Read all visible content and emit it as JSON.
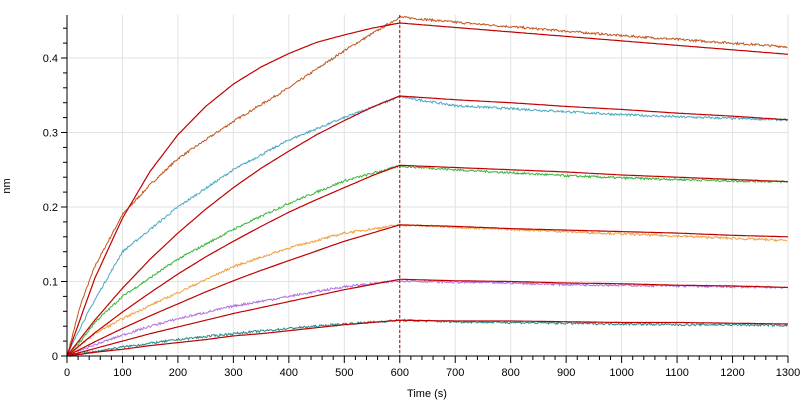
{
  "chart_data": {
    "type": "line",
    "xlabel": "Time (s)",
    "ylabel": "nm",
    "xlim": [
      0,
      1300
    ],
    "ylim": [
      0,
      0.458
    ],
    "x_ticks": [
      0,
      100,
      200,
      300,
      400,
      500,
      600,
      700,
      800,
      900,
      1000,
      1100,
      1200,
      1300
    ],
    "y_ticks": [
      0,
      0.1,
      0.2,
      0.3,
      0.4
    ],
    "y_tick_labels": [
      "0",
      "0.1",
      "0.2",
      "0.3",
      "0.4"
    ],
    "grid": true,
    "marker_line": {
      "x": 600,
      "style": "dashed",
      "color": "#b00000"
    },
    "fit_color": "#c00000",
    "measured": [
      {
        "color": "#c0561e",
        "points": [
          [
            0,
            0
          ],
          [
            25,
            0.07
          ],
          [
            50,
            0.12
          ],
          [
            100,
            0.19
          ],
          [
            150,
            0.23
          ],
          [
            200,
            0.265
          ],
          [
            300,
            0.315
          ],
          [
            400,
            0.36
          ],
          [
            500,
            0.41
          ],
          [
            600,
            0.455
          ],
          [
            700,
            0.448
          ],
          [
            800,
            0.442
          ],
          [
            900,
            0.436
          ],
          [
            1000,
            0.43
          ],
          [
            1100,
            0.425
          ],
          [
            1200,
            0.42
          ],
          [
            1300,
            0.415
          ]
        ]
      },
      {
        "color": "#4aa8c4",
        "points": [
          [
            0,
            0
          ],
          [
            25,
            0.04
          ],
          [
            50,
            0.075
          ],
          [
            100,
            0.14
          ],
          [
            150,
            0.17
          ],
          [
            200,
            0.2
          ],
          [
            300,
            0.25
          ],
          [
            400,
            0.29
          ],
          [
            500,
            0.32
          ],
          [
            600,
            0.348
          ],
          [
            700,
            0.336
          ],
          [
            800,
            0.332
          ],
          [
            900,
            0.328
          ],
          [
            1000,
            0.324
          ],
          [
            1100,
            0.321
          ],
          [
            1200,
            0.319
          ],
          [
            1300,
            0.317
          ]
        ]
      },
      {
        "color": "#3cb43c",
        "points": [
          [
            0,
            0
          ],
          [
            25,
            0.02
          ],
          [
            50,
            0.045
          ],
          [
            100,
            0.08
          ],
          [
            150,
            0.105
          ],
          [
            200,
            0.13
          ],
          [
            300,
            0.17
          ],
          [
            400,
            0.205
          ],
          [
            500,
            0.235
          ],
          [
            600,
            0.255
          ],
          [
            700,
            0.25
          ],
          [
            800,
            0.246
          ],
          [
            900,
            0.242
          ],
          [
            1000,
            0.239
          ],
          [
            1100,
            0.237
          ],
          [
            1200,
            0.235
          ],
          [
            1300,
            0.234
          ]
        ]
      },
      {
        "color": "#f0a040",
        "points": [
          [
            0,
            0
          ],
          [
            25,
            0.015
          ],
          [
            50,
            0.03
          ],
          [
            100,
            0.05
          ],
          [
            150,
            0.068
          ],
          [
            200,
            0.085
          ],
          [
            300,
            0.12
          ],
          [
            400,
            0.145
          ],
          [
            500,
            0.165
          ],
          [
            600,
            0.176
          ],
          [
            700,
            0.173
          ],
          [
            800,
            0.17
          ],
          [
            900,
            0.167
          ],
          [
            1000,
            0.164
          ],
          [
            1100,
            0.161
          ],
          [
            1200,
            0.158
          ],
          [
            1300,
            0.155
          ]
        ]
      },
      {
        "color": "#b070e0",
        "points": [
          [
            0,
            0
          ],
          [
            25,
            0.008
          ],
          [
            50,
            0.015
          ],
          [
            100,
            0.028
          ],
          [
            150,
            0.04
          ],
          [
            200,
            0.05
          ],
          [
            300,
            0.067
          ],
          [
            400,
            0.08
          ],
          [
            500,
            0.093
          ],
          [
            600,
            0.101
          ],
          [
            700,
            0.099
          ],
          [
            800,
            0.098
          ],
          [
            900,
            0.096
          ],
          [
            1000,
            0.095
          ],
          [
            1100,
            0.094
          ],
          [
            1200,
            0.093
          ],
          [
            1300,
            0.092
          ]
        ]
      },
      {
        "color": "#2a8a8a",
        "points": [
          [
            0,
            0
          ],
          [
            25,
            0.003
          ],
          [
            50,
            0.006
          ],
          [
            100,
            0.012
          ],
          [
            150,
            0.017
          ],
          [
            200,
            0.022
          ],
          [
            300,
            0.03
          ],
          [
            400,
            0.037
          ],
          [
            500,
            0.043
          ],
          [
            600,
            0.048
          ],
          [
            700,
            0.046
          ],
          [
            800,
            0.045
          ],
          [
            900,
            0.044
          ],
          [
            1000,
            0.043
          ],
          [
            1100,
            0.042
          ],
          [
            1200,
            0.042
          ],
          [
            1300,
            0.041
          ]
        ]
      }
    ],
    "fits": [
      {
        "points": [
          [
            0,
            0
          ],
          [
            50,
            0.104
          ],
          [
            100,
            0.185
          ],
          [
            150,
            0.248
          ],
          [
            200,
            0.297
          ],
          [
            250,
            0.335
          ],
          [
            300,
            0.365
          ],
          [
            350,
            0.388
          ],
          [
            400,
            0.406
          ],
          [
            450,
            0.421
          ],
          [
            500,
            0.431
          ],
          [
            550,
            0.44
          ],
          [
            600,
            0.447
          ],
          [
            700,
            0.441
          ],
          [
            800,
            0.435
          ],
          [
            900,
            0.429
          ],
          [
            1000,
            0.423
          ],
          [
            1100,
            0.417
          ],
          [
            1200,
            0.411
          ],
          [
            1300,
            0.405
          ]
        ]
      },
      {
        "points": [
          [
            0,
            0
          ],
          [
            50,
            0.048
          ],
          [
            100,
            0.091
          ],
          [
            150,
            0.13
          ],
          [
            200,
            0.165
          ],
          [
            250,
            0.197
          ],
          [
            300,
            0.226
          ],
          [
            350,
            0.252
          ],
          [
            400,
            0.275
          ],
          [
            450,
            0.297
          ],
          [
            500,
            0.316
          ],
          [
            550,
            0.334
          ],
          [
            600,
            0.349
          ],
          [
            700,
            0.344
          ],
          [
            800,
            0.34
          ],
          [
            900,
            0.335
          ],
          [
            1000,
            0.331
          ],
          [
            1100,
            0.326
          ],
          [
            1200,
            0.322
          ],
          [
            1300,
            0.317
          ]
        ]
      },
      {
        "points": [
          [
            0,
            0
          ],
          [
            50,
            0.031
          ],
          [
            100,
            0.059
          ],
          [
            150,
            0.085
          ],
          [
            200,
            0.11
          ],
          [
            250,
            0.133
          ],
          [
            300,
            0.154
          ],
          [
            350,
            0.174
          ],
          [
            400,
            0.193
          ],
          [
            450,
            0.21
          ],
          [
            500,
            0.226
          ],
          [
            550,
            0.242
          ],
          [
            600,
            0.256
          ],
          [
            700,
            0.253
          ],
          [
            800,
            0.25
          ],
          [
            900,
            0.247
          ],
          [
            1000,
            0.243
          ],
          [
            1100,
            0.24
          ],
          [
            1200,
            0.237
          ],
          [
            1300,
            0.234
          ]
        ]
      },
      {
        "points": [
          [
            0,
            0
          ],
          [
            50,
            0.019
          ],
          [
            100,
            0.037
          ],
          [
            150,
            0.054
          ],
          [
            200,
            0.07
          ],
          [
            250,
            0.086
          ],
          [
            300,
            0.101
          ],
          [
            350,
            0.115
          ],
          [
            400,
            0.128
          ],
          [
            450,
            0.141
          ],
          [
            500,
            0.154
          ],
          [
            550,
            0.165
          ],
          [
            600,
            0.176
          ],
          [
            700,
            0.174
          ],
          [
            800,
            0.171
          ],
          [
            900,
            0.169
          ],
          [
            1000,
            0.167
          ],
          [
            1100,
            0.165
          ],
          [
            1200,
            0.162
          ],
          [
            1300,
            0.16
          ]
        ]
      },
      {
        "points": [
          [
            0,
            0
          ],
          [
            50,
            0.01
          ],
          [
            100,
            0.02
          ],
          [
            150,
            0.03
          ],
          [
            200,
            0.039
          ],
          [
            250,
            0.048
          ],
          [
            300,
            0.057
          ],
          [
            350,
            0.065
          ],
          [
            400,
            0.073
          ],
          [
            450,
            0.081
          ],
          [
            500,
            0.089
          ],
          [
            550,
            0.096
          ],
          [
            600,
            0.103
          ],
          [
            700,
            0.101
          ],
          [
            800,
            0.1
          ],
          [
            900,
            0.098
          ],
          [
            1000,
            0.097
          ],
          [
            1100,
            0.095
          ],
          [
            1200,
            0.094
          ],
          [
            1300,
            0.092
          ]
        ]
      },
      {
        "points": [
          [
            0,
            0
          ],
          [
            50,
            0.005
          ],
          [
            100,
            0.009
          ],
          [
            150,
            0.014
          ],
          [
            200,
            0.018
          ],
          [
            250,
            0.022
          ],
          [
            300,
            0.027
          ],
          [
            350,
            0.03
          ],
          [
            400,
            0.034
          ],
          [
            450,
            0.038
          ],
          [
            500,
            0.042
          ],
          [
            550,
            0.045
          ],
          [
            600,
            0.048
          ],
          [
            700,
            0.047
          ],
          [
            800,
            0.047
          ],
          [
            900,
            0.046
          ],
          [
            1000,
            0.045
          ],
          [
            1100,
            0.045
          ],
          [
            1200,
            0.044
          ],
          [
            1300,
            0.043
          ]
        ]
      }
    ]
  }
}
